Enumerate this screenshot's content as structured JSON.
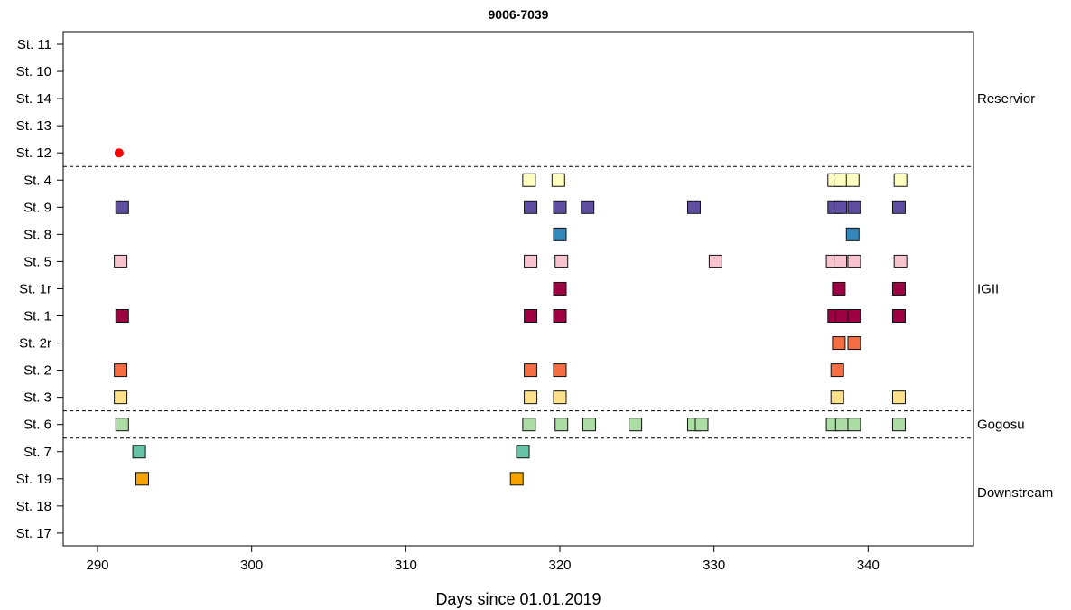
{
  "chart_data": {
    "type": "scatter",
    "title": "9006-7039",
    "xlabel": "Days since 01.01.2019",
    "ylabel": "",
    "xlim": [
      288,
      347
    ],
    "x_ticks": [
      290,
      300,
      310,
      320,
      330,
      340
    ],
    "stations": [
      "St. 11",
      "St. 10",
      "St. 14",
      "St. 13",
      "St. 12",
      "St. 4",
      "St. 9",
      "St. 8",
      "St. 5",
      "St. 1r",
      "St. 1",
      "St. 2r",
      "St. 2",
      "St. 3",
      "St. 6",
      "St. 7",
      "St. 19",
      "St. 18",
      "St. 17"
    ],
    "zones": [
      {
        "name": "Reservior",
        "from": "St. 11",
        "to": "St. 12"
      },
      {
        "name": "IGII",
        "from": "St. 4",
        "to": "St. 3"
      },
      {
        "name": "Gogosu",
        "from": "St. 6",
        "to": "St. 6"
      },
      {
        "name": "Downstream",
        "from": "St. 7",
        "to": "St. 17"
      }
    ],
    "release": {
      "station": "St. 12",
      "x": 291.4,
      "color": "#ff0000",
      "marker": "circle"
    },
    "series": [
      {
        "station": "St. 4",
        "color": "#ffffbf",
        "x": [
          318.0,
          319.9,
          337.8,
          338.2,
          339.0,
          342.1
        ]
      },
      {
        "station": "St. 9",
        "color": "#5e4fa2",
        "x": [
          291.6,
          318.1,
          320.0,
          321.8,
          328.7,
          337.8,
          338.2,
          339.1,
          342.0
        ]
      },
      {
        "station": "St. 8",
        "color": "#3288bd",
        "x": [
          320.0,
          339.0
        ]
      },
      {
        "station": "St. 5",
        "color": "#f8c3ce",
        "x": [
          291.5,
          318.1,
          320.1,
          330.1,
          337.7,
          338.2,
          339.1,
          342.1
        ]
      },
      {
        "station": "St. 1r",
        "color": "#9e0142",
        "x": [
          320.0,
          338.1,
          342.0
        ]
      },
      {
        "station": "St. 1",
        "color": "#9e0142",
        "x": [
          291.6,
          318.1,
          320.0,
          337.8,
          338.3,
          339.1,
          342.0
        ]
      },
      {
        "station": "St. 2r",
        "color": "#f46d43",
        "x": [
          338.1,
          339.1
        ]
      },
      {
        "station": "St. 2",
        "color": "#f46d43",
        "x": [
          291.5,
          318.1,
          320.0,
          338.0
        ]
      },
      {
        "station": "St. 3",
        "color": "#fee08b",
        "x": [
          291.5,
          318.1,
          320.0,
          338.0,
          342.0
        ]
      },
      {
        "station": "St. 6",
        "color": "#abdda4",
        "x": [
          291.6,
          318.0,
          320.1,
          321.9,
          324.9,
          328.7,
          329.2,
          337.7,
          338.3,
          339.1,
          342.0
        ]
      },
      {
        "station": "St. 7",
        "color": "#66c2a5",
        "x": [
          292.7,
          317.6
        ]
      },
      {
        "station": "St. 19",
        "color": "#f7a400",
        "x": [
          292.9,
          317.2
        ]
      }
    ]
  }
}
